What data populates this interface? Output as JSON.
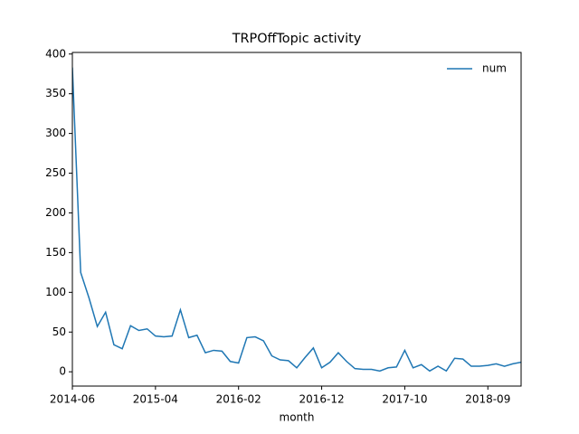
{
  "chart_data": {
    "type": "line",
    "title": "TRPOffTopic activity",
    "x_label": "month",
    "categories": [
      "2014-06",
      null,
      null,
      null,
      null,
      null,
      null,
      null,
      null,
      null,
      "2015-04",
      null,
      null,
      null,
      null,
      null,
      null,
      null,
      null,
      null,
      "2016-02",
      null,
      null,
      null,
      null,
      null,
      null,
      null,
      null,
      null,
      "2016-12",
      null,
      null,
      null,
      null,
      null,
      null,
      null,
      null,
      null,
      "2017-10",
      null,
      null,
      null,
      null,
      null,
      null,
      null,
      null,
      null,
      "2018-09",
      null,
      null,
      null,
      null
    ],
    "series": [
      {
        "name": "num",
        "color": "#1f77b4",
        "values": [
          383,
          125,
          93,
          57,
          75,
          34,
          29,
          58,
          52,
          54,
          45,
          44,
          45,
          78,
          43,
          46,
          24,
          27,
          26,
          13,
          11,
          43,
          44,
          39,
          20,
          15,
          14,
          5,
          18,
          30,
          5,
          12,
          24,
          13,
          4,
          3,
          3,
          1,
          5,
          6,
          27,
          5,
          9,
          1,
          7,
          1,
          17,
          16,
          7,
          7,
          8,
          10,
          7,
          10,
          12
        ]
      }
    ],
    "ylim": [
      -18,
      402
    ],
    "yticks": [
      0,
      50,
      100,
      150,
      200,
      250,
      300,
      350,
      400
    ],
    "grid": false,
    "legend": "upper right"
  }
}
